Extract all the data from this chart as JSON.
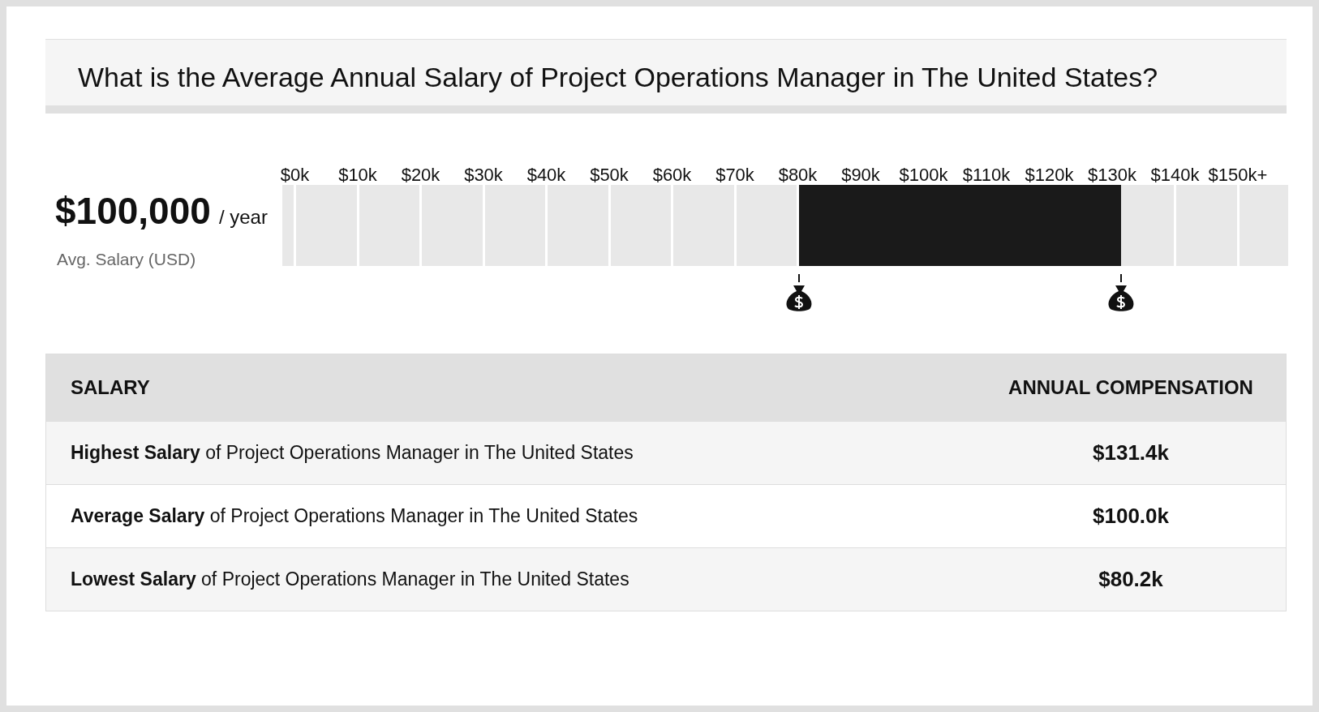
{
  "chart_data": {
    "type": "bar",
    "orientation": "horizontal",
    "title": "What is the Average Annual Salary of Project Operations Manager in The United States?",
    "categories": [
      null
    ],
    "values": [
      51.2
    ],
    "base": [
      80.2
    ],
    "color": "#1a1a1a",
    "xlim": [
      -2,
      158
    ],
    "xticks": [
      {
        "value": 0,
        "label": "$0k"
      },
      {
        "value": 10,
        "label": "$10k"
      },
      {
        "value": 20,
        "label": "$20k"
      },
      {
        "value": 30,
        "label": "$30k"
      },
      {
        "value": 40,
        "label": "$40k"
      },
      {
        "value": 50,
        "label": "$50k"
      },
      {
        "value": 60,
        "label": "$60k"
      },
      {
        "value": 70,
        "label": "$70k"
      },
      {
        "value": 80,
        "label": "$80k"
      },
      {
        "value": 90,
        "label": "$90k"
      },
      {
        "value": 100,
        "label": "$100k"
      },
      {
        "value": 110,
        "label": "$110k"
      },
      {
        "value": 120,
        "label": "$120k"
      },
      {
        "value": 130,
        "label": "$130k"
      },
      {
        "value": 140,
        "label": "$140k"
      },
      {
        "value": 150,
        "label": "$150k+"
      }
    ],
    "grid": "x",
    "tick_labels": "x",
    "annotations": [
      "$100,000",
      "/ year",
      "Avg. Salary (USD)",
      "SALARY",
      "ANNUAL COMPENSATION",
      "Highest Salary of Project Operations Manager in The United States",
      "$131.4k",
      "Average Salary of Project Operations Manager in The United States",
      "$100.0k",
      "Lowest Salary of Project Operations Manager in The United States",
      "$80.2k"
    ]
  }
}
